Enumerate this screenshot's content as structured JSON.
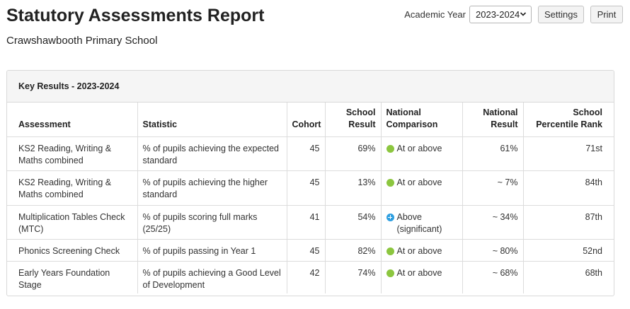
{
  "header": {
    "title": "Statutory Assessments Report",
    "school_name": "Crawshawbooth Primary School"
  },
  "controls": {
    "year_label": "Academic Year",
    "year_selected": "2023-2024",
    "settings_label": "Settings",
    "print_label": "Print"
  },
  "panel": {
    "heading": "Key Results - 2023-2024"
  },
  "table": {
    "headers": {
      "assessment": "Assessment",
      "statistic": "Statistic",
      "cohort": "Cohort",
      "school_result": "School Result",
      "national_comparison": "National Comparison",
      "national_result": "National Result",
      "percentile_rank": "School Percentile Rank"
    },
    "rows": [
      {
        "assessment": "KS2 Reading, Writing & Maths combined",
        "statistic": "% of pupils achieving the expected standard",
        "cohort": "45",
        "school_result": "69%",
        "comparison": "At or above",
        "comparison_icon": "green-dot-icon",
        "national_result": "61%",
        "percentile_rank": "71st"
      },
      {
        "assessment": "KS2 Reading, Writing & Maths combined",
        "statistic": "% of pupils achieving the higher standard",
        "cohort": "45",
        "school_result": "13%",
        "comparison": "At or above",
        "comparison_icon": "green-dot-icon",
        "national_result": "~ 7%",
        "percentile_rank": "84th"
      },
      {
        "assessment": "Multiplication Tables Check (MTC)",
        "statistic": "% of pupils scoring full marks (25/25)",
        "cohort": "41",
        "school_result": "54%",
        "comparison": "Above (significant)",
        "comparison_icon": "blue-plus-icon",
        "national_result": "~ 34%",
        "percentile_rank": "87th"
      },
      {
        "assessment": "Phonics Screening Check",
        "statistic": "% of pupils passing in Year 1",
        "cohort": "45",
        "school_result": "82%",
        "comparison": "At or above",
        "comparison_icon": "green-dot-icon",
        "national_result": "~ 80%",
        "percentile_rank": "52nd"
      },
      {
        "assessment": "Early Years Foundation Stage",
        "statistic": "% of pupils achieving a Good Level of Development",
        "cohort": "42",
        "school_result": "74%",
        "comparison": "At or above",
        "comparison_icon": "green-dot-icon",
        "national_result": "~ 68%",
        "percentile_rank": "68th"
      }
    ]
  },
  "colors": {
    "at_or_above": "#8cc63f",
    "above_significant": "#2e9fe0",
    "border": "#d9d9d9",
    "panel_header_bg": "#f5f5f5"
  }
}
